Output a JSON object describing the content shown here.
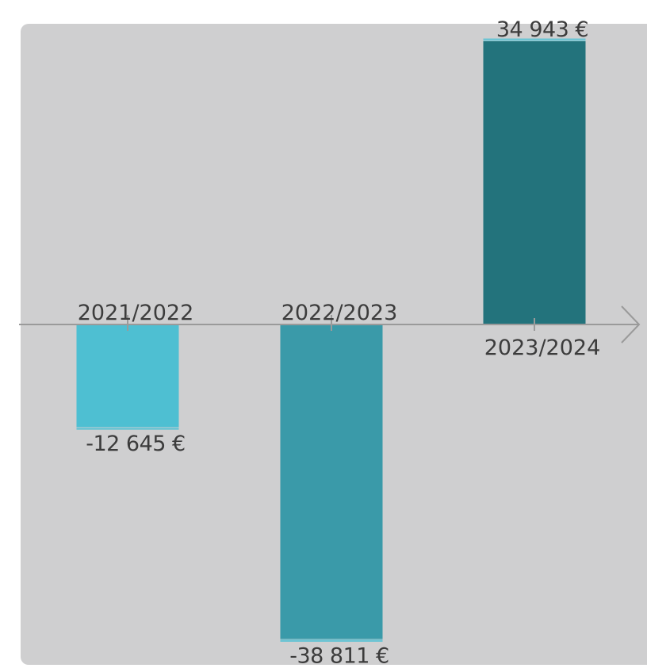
{
  "chart_data": {
    "type": "bar",
    "categories": [
      "2021/2022",
      "2022/2023",
      "2023/2024"
    ],
    "values": [
      -12645,
      -38811,
      34943
    ],
    "value_labels": [
      "-12 645 €",
      "-38 811 €",
      "34 943 €"
    ],
    "bar_colors": [
      "#4ebfd2",
      "#3a9aa9",
      "#23737c"
    ],
    "underline_color": "#6ec4d3",
    "panel_color": "#cfcfd0",
    "axis_color": "#9a9a9a",
    "grid": false,
    "legend": "none"
  }
}
